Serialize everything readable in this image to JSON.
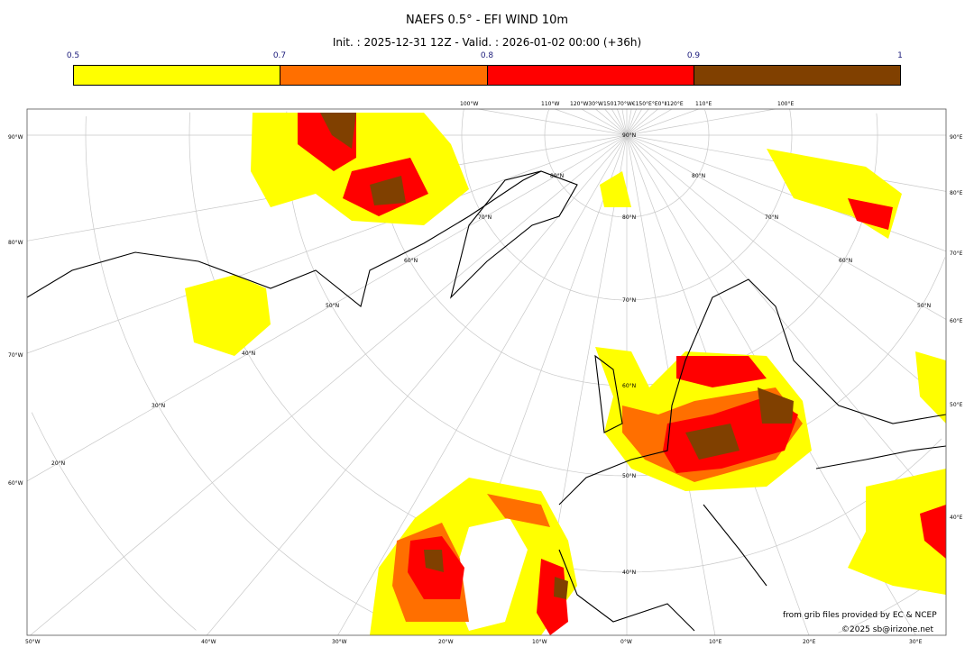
{
  "title": "NAEFS 0.5° - EFI WIND 10m",
  "subtitle": "Init. : 2025-12-31 12Z - Valid. : 2026-01-02 00:00 (+36h)",
  "colorbar": {
    "ticks": [
      "0.5",
      "0.7",
      "0.8",
      "0.9",
      "1"
    ],
    "colors": [
      "#ffff00",
      "#ff6f00",
      "#ff0000",
      "#804000"
    ]
  },
  "map": {
    "projection": "polar stereographic (north)",
    "left_labels": [
      "90°W",
      "80°W",
      "70°W",
      "60°W"
    ],
    "right_labels": [
      "90°E",
      "80°E",
      "70°E",
      "60°E",
      "50°E",
      "40°E"
    ],
    "bottom_labels": [
      "50°W",
      "40°W",
      "30°W",
      "20°W",
      "10°W",
      "0°W",
      "10°E",
      "20°E",
      "30°E"
    ],
    "top_labels": [
      "100°W",
      "110°W",
      "120°W30°W150170°W€150°E°E0°Ⅱ120°E",
      "110°E",
      "100°E"
    ],
    "parallel_labels": [
      "90°N",
      "80°N",
      "70°N",
      "60°N",
      "50°N",
      "40°N",
      "80°N",
      "70°N",
      "60°N",
      "50°N",
      "40°N",
      "30°N",
      "20°N",
      "80°N",
      "70°N",
      "60°N",
      "50°N"
    ]
  },
  "credits": {
    "source": "from grib files provided by EC & NCEP",
    "copyright": "©2025 sb@irizone.net"
  }
}
